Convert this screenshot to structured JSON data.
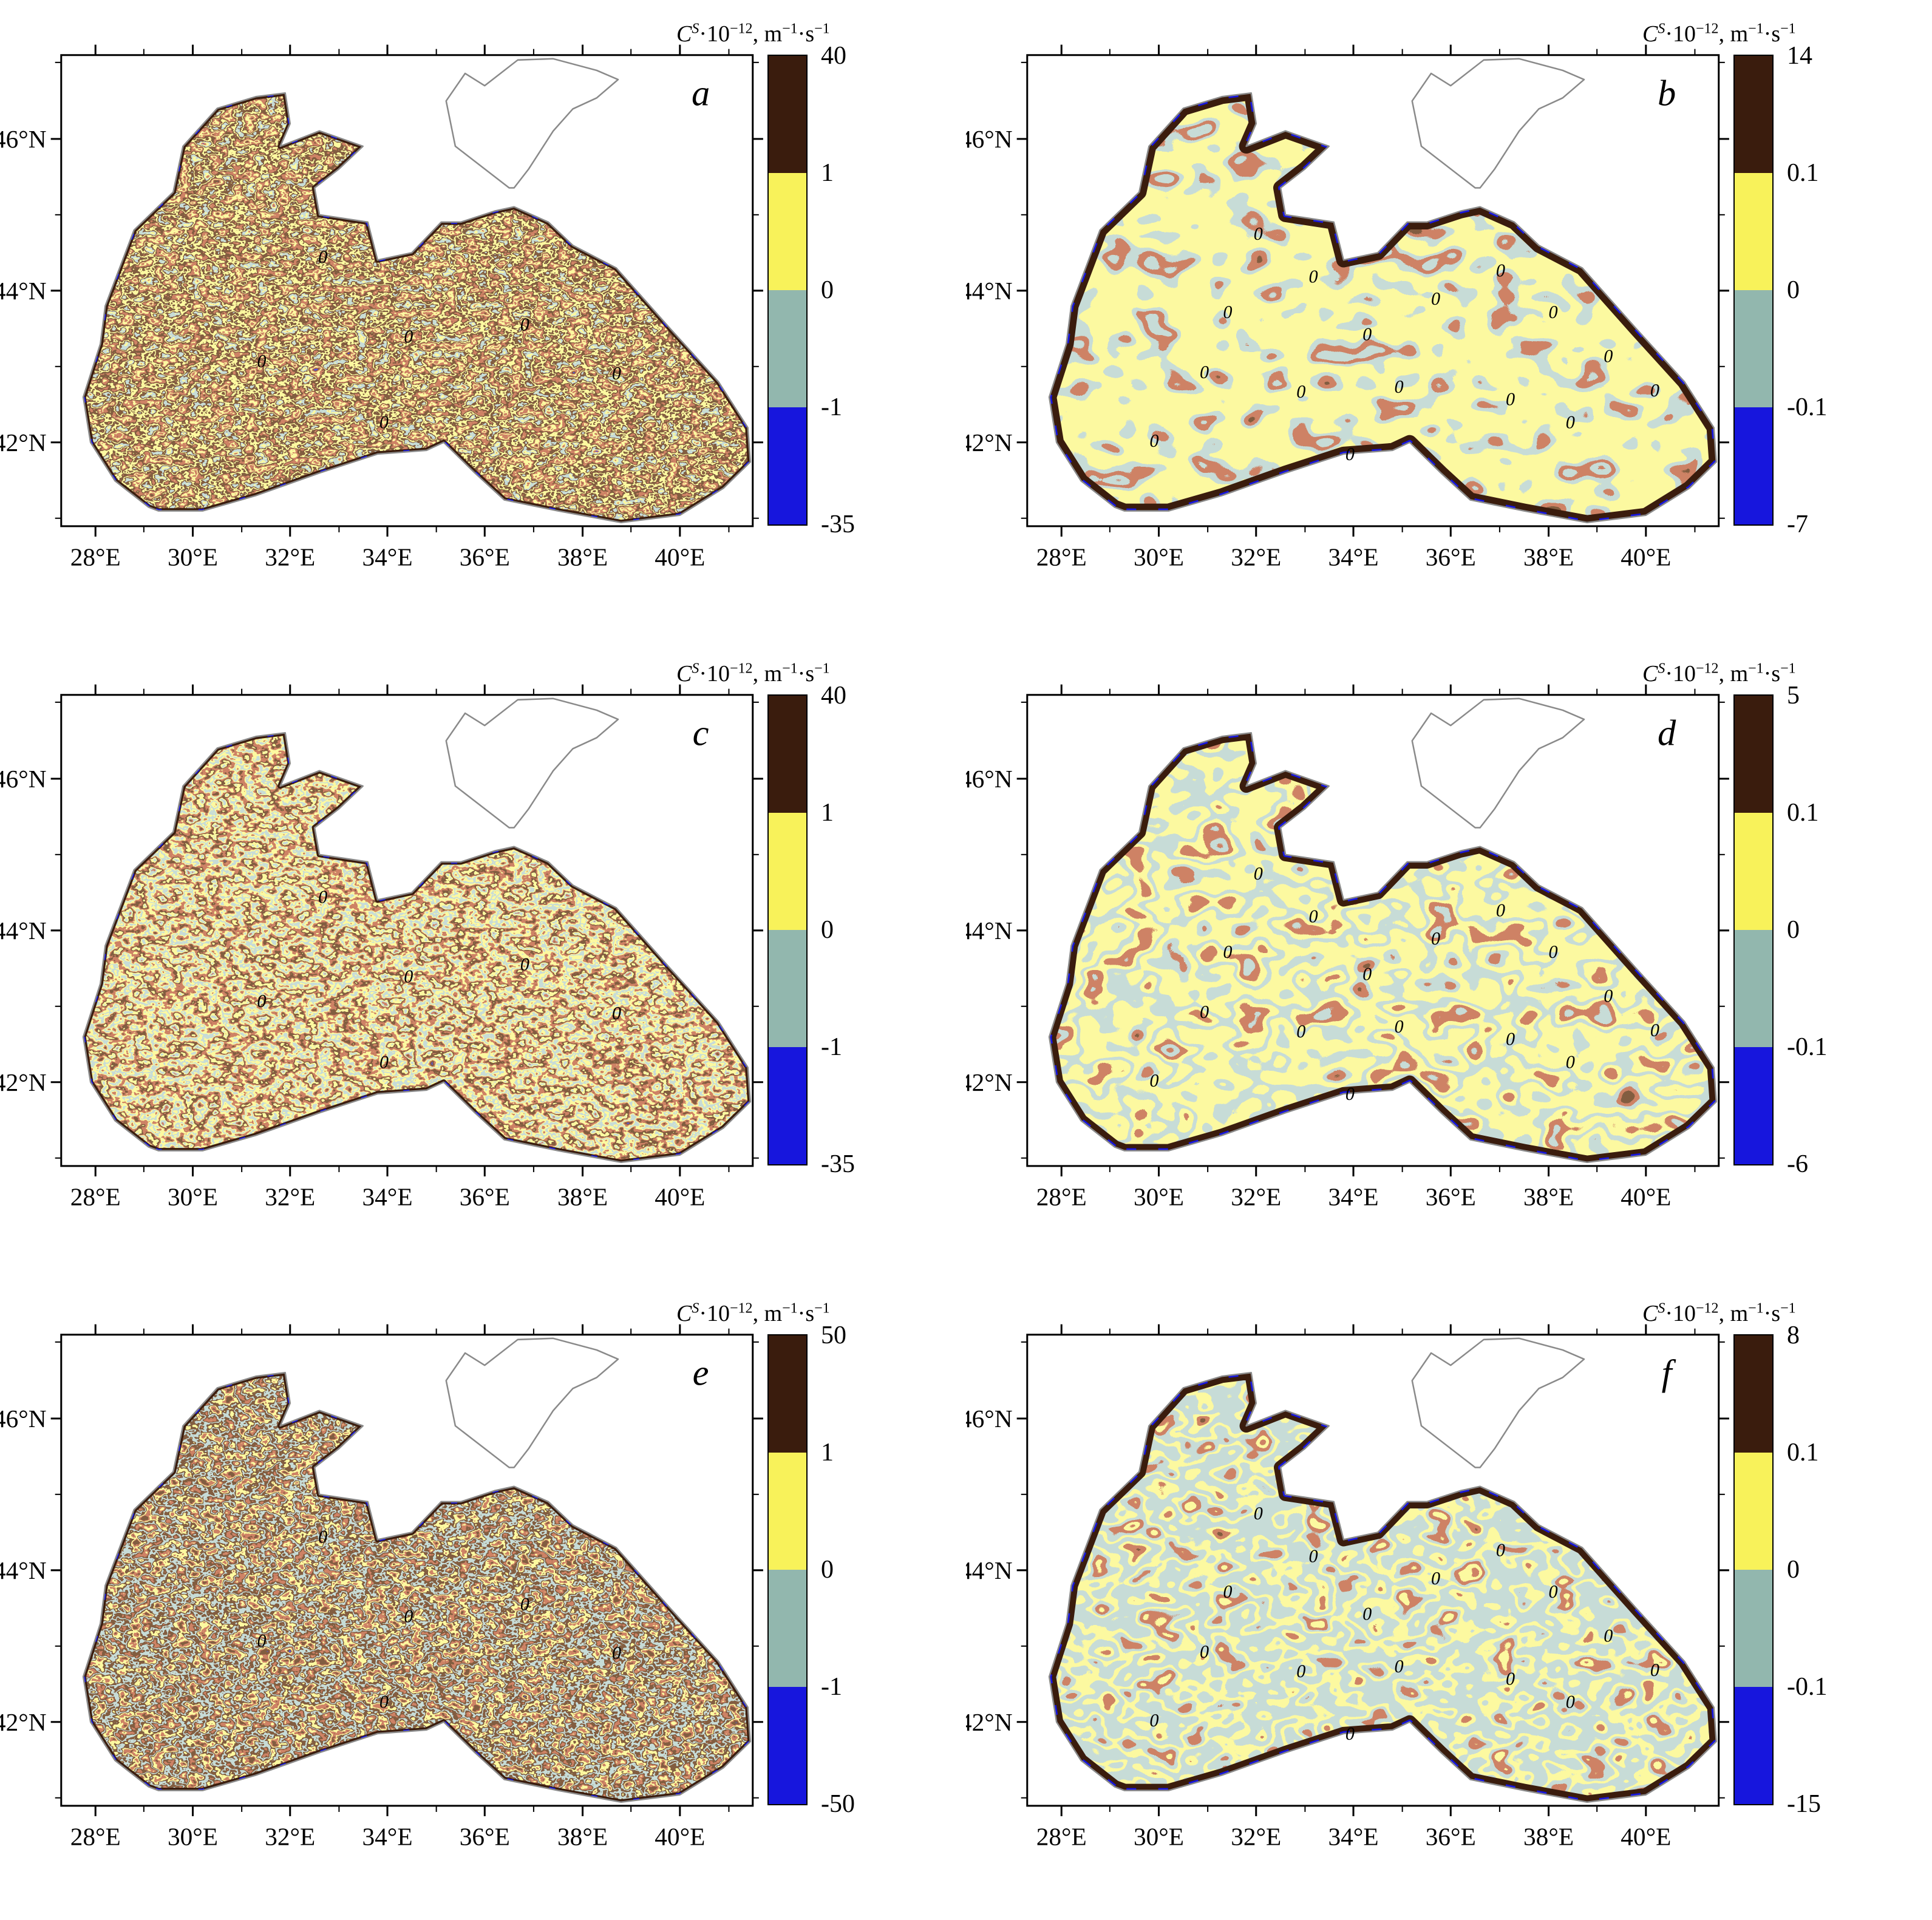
{
  "colors": {
    "dark_brown": "#3a1c0d",
    "red_brown": "#9e3a22",
    "yellow": "#f8f25a",
    "teal": "#92b7ae",
    "blue": "#1716dd",
    "coast": "#8a8a8a",
    "frame": "#000000"
  },
  "cbar_title": {
    "c": "C",
    "sup_s": "S",
    "mul": "·10",
    "exp": "−12",
    "m": ", m",
    "m_exp": "−1",
    "s": "·s",
    "s_exp": "−1"
  },
  "x_ticks": [
    "28°E",
    "30°E",
    "32°E",
    "34°E",
    "36°E",
    "38°E",
    "40°E"
  ],
  "y_ticks": [
    "46°N",
    "44°N",
    "42°N"
  ],
  "contour_label": "0",
  "panels": [
    {
      "label": "a",
      "cbar": [
        "40",
        "1",
        "0",
        "-1",
        "-35"
      ]
    },
    {
      "label": "b",
      "cbar": [
        "14",
        "0.1",
        "0",
        "-0.1",
        "-7"
      ]
    },
    {
      "label": "c",
      "cbar": [
        "40",
        "1",
        "0",
        "-1",
        "-35"
      ]
    },
    {
      "label": "d",
      "cbar": [
        "5",
        "0.1",
        "0",
        "-0.1",
        "-6"
      ]
    },
    {
      "label": "e",
      "cbar": [
        "50",
        "1",
        "0",
        "-1",
        "-50"
      ]
    },
    {
      "label": "f",
      "cbar": [
        "8",
        "0.1",
        "0",
        "-0.1",
        "-15"
      ]
    }
  ],
  "chart_data": [
    {
      "type": "heatmap",
      "panel": "a",
      "region": "Black Sea contour map",
      "colorbar_title": "C^S·10^-12, m^-1·s^-1",
      "colorbar_ticks": [
        40,
        1,
        0,
        -1,
        -35
      ],
      "colorbar_segment_colors": [
        "#3a1c0d",
        "#f8f25a",
        "#92b7ae",
        "#1716dd"
      ],
      "x_ticks": [
        "28°E",
        "30°E",
        "32°E",
        "34°E",
        "36°E",
        "38°E",
        "40°E"
      ],
      "y_ticks": [
        "46°N",
        "44°N",
        "42°N"
      ],
      "contour_labels": [
        "0"
      ]
    },
    {
      "type": "heatmap",
      "panel": "b",
      "region": "Black Sea contour map",
      "colorbar_title": "C^S·10^-12, m^-1·s^-1",
      "colorbar_ticks": [
        14,
        0.1,
        0,
        -0.1,
        -7
      ],
      "colorbar_segment_colors": [
        "#3a1c0d",
        "#f8f25a",
        "#92b7ae",
        "#1716dd"
      ],
      "x_ticks": [
        "28°E",
        "30°E",
        "32°E",
        "34°E",
        "36°E",
        "38°E",
        "40°E"
      ],
      "y_ticks": [
        "46°N",
        "44°N",
        "42°N"
      ],
      "contour_labels": [
        "0"
      ]
    },
    {
      "type": "heatmap",
      "panel": "c",
      "region": "Black Sea contour map",
      "colorbar_title": "C^S·10^-12, m^-1·s^-1",
      "colorbar_ticks": [
        40,
        1,
        0,
        -1,
        -35
      ],
      "colorbar_segment_colors": [
        "#3a1c0d",
        "#f8f25a",
        "#92b7ae",
        "#1716dd"
      ],
      "x_ticks": [
        "28°E",
        "30°E",
        "32°E",
        "34°E",
        "36°E",
        "38°E",
        "40°E"
      ],
      "y_ticks": [
        "46°N",
        "44°N",
        "42°N"
      ],
      "contour_labels": [
        "0"
      ]
    },
    {
      "type": "heatmap",
      "panel": "d",
      "region": "Black Sea contour map",
      "colorbar_title": "C^S·10^-12, m^-1·s^-1",
      "colorbar_ticks": [
        5,
        0.1,
        0,
        -0.1,
        -6
      ],
      "colorbar_segment_colors": [
        "#3a1c0d",
        "#f8f25a",
        "#92b7ae",
        "#1716dd"
      ],
      "x_ticks": [
        "28°E",
        "30°E",
        "32°E",
        "34°E",
        "36°E",
        "38°E",
        "40°E"
      ],
      "y_ticks": [
        "46°N",
        "44°N",
        "42°N"
      ],
      "contour_labels": [
        "0"
      ]
    },
    {
      "type": "heatmap",
      "panel": "e",
      "region": "Black Sea contour map",
      "colorbar_title": "C^S·10^-12, m^-1·s^-1",
      "colorbar_ticks": [
        50,
        1,
        0,
        -1,
        -50
      ],
      "colorbar_segment_colors": [
        "#3a1c0d",
        "#f8f25a",
        "#92b7ae",
        "#1716dd"
      ],
      "x_ticks": [
        "28°E",
        "30°E",
        "32°E",
        "34°E",
        "36°E",
        "38°E",
        "40°E"
      ],
      "y_ticks": [
        "46°N",
        "44°N",
        "42°N"
      ],
      "contour_labels": [
        "0"
      ]
    },
    {
      "type": "heatmap",
      "panel": "f",
      "region": "Black Sea contour map",
      "colorbar_title": "C^S·10^-12, m^-1·s^-1",
      "colorbar_ticks": [
        8,
        0.1,
        0,
        -0.1,
        -15
      ],
      "colorbar_segment_colors": [
        "#3a1c0d",
        "#f8f25a",
        "#92b7ae",
        "#1716dd"
      ],
      "x_ticks": [
        "28°E",
        "30°E",
        "32°E",
        "34°E",
        "36°E",
        "38°E",
        "40°E"
      ],
      "y_ticks": [
        "46°N",
        "44°N",
        "42°N"
      ],
      "contour_labels": [
        "0"
      ]
    }
  ]
}
